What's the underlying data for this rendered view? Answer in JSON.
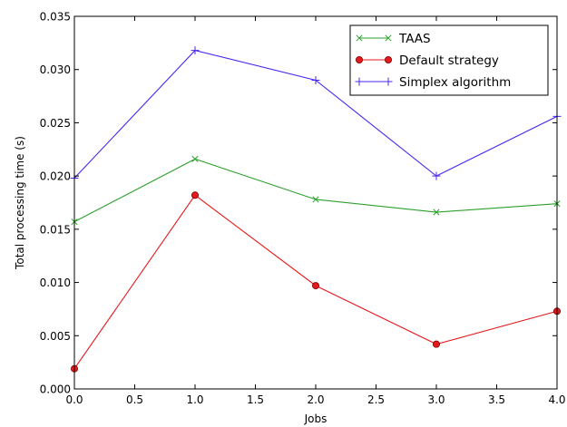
{
  "chart_data": {
    "type": "line",
    "title": "",
    "xlabel": "Jobs",
    "ylabel": "Total processing time (s)",
    "xlim": [
      0,
      4
    ],
    "ylim": [
      0,
      0.035
    ],
    "x": [
      0,
      1,
      2,
      3,
      4
    ],
    "xticks": [
      "0.0",
      "0.5",
      "1.0",
      "1.5",
      "2.0",
      "2.5",
      "3.0",
      "3.5",
      "4.0"
    ],
    "yticks": [
      "0.000",
      "0.005",
      "0.010",
      "0.015",
      "0.020",
      "0.025",
      "0.030",
      "0.035"
    ],
    "grid": false,
    "legend_position": "top-right",
    "series": [
      {
        "name": "TAAS",
        "values": [
          0.0157,
          0.0216,
          0.0178,
          0.0166,
          0.0174
        ],
        "color": "#2ca02c",
        "marker": "x"
      },
      {
        "name": "Default strategy",
        "values": [
          0.0019,
          0.0182,
          0.0097,
          0.0042,
          0.0073
        ],
        "color": "#e41a1c",
        "marker": "circle"
      },
      {
        "name": "Simplex algorithm",
        "values": [
          0.0198,
          0.0318,
          0.029,
          0.02,
          0.0256
        ],
        "color": "#4b23f0",
        "marker": "plus"
      }
    ]
  }
}
